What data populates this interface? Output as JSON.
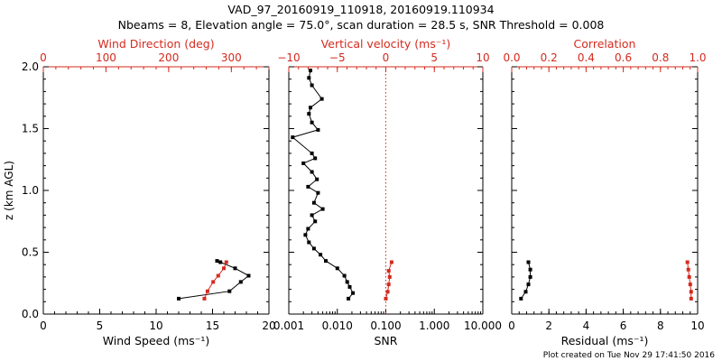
{
  "header": {
    "line1": "VAD_97_20160919_110918, 20160919.110934",
    "line2": "Nbeams = 8, Elevation angle = 75.0°, scan duration = 28.5 s, SNR Threshold = 0.008"
  },
  "footer": "Plot created on Tue Nov 29 17:41:50 2016",
  "colors": {
    "primary": "#000000",
    "secondary": "#d42a1e"
  },
  "chart_data": [
    {
      "type": "line",
      "panel": "left",
      "ylabel": "z (km AGL)",
      "ylim": [
        0,
        2
      ],
      "y_ticks": [
        0.0,
        0.5,
        1.0,
        1.5,
        2.0
      ],
      "y_tick_labels": [
        "0.0",
        "0.5",
        "1.0",
        "1.5",
        "2.0"
      ],
      "x_bottom": {
        "label": "Wind Speed (ms⁻¹)",
        "range": [
          0,
          20
        ],
        "ticks": [
          0,
          5,
          10,
          15,
          20
        ],
        "tick_labels": [
          "0",
          "5",
          "10",
          "15",
          "20"
        ]
      },
      "x_top": {
        "label": "Wind Direction (deg)",
        "range": [
          0,
          360
        ],
        "ticks": [
          0,
          100,
          200,
          300
        ],
        "tick_labels": [
          "0",
          "100",
          "200",
          "300"
        ]
      },
      "series": [
        {
          "axis": "bottom",
          "color": "black",
          "points": [
            [
              12.0,
              0.125
            ],
            [
              16.5,
              0.185
            ],
            [
              17.5,
              0.26
            ],
            [
              18.2,
              0.31
            ],
            [
              17.0,
              0.37
            ],
            [
              15.7,
              0.42
            ],
            [
              15.4,
              0.43
            ]
          ]
        },
        {
          "axis": "top",
          "color": "red",
          "points": [
            [
              257,
              0.125
            ],
            [
              262,
              0.185
            ],
            [
              271,
              0.26
            ],
            [
              279,
              0.31
            ],
            [
              288,
              0.37
            ],
            [
              292,
              0.42
            ]
          ]
        }
      ]
    },
    {
      "type": "line",
      "panel": "middle",
      "ylim": [
        0,
        2
      ],
      "x_bottom": {
        "label": "SNR",
        "scale": "log",
        "range": [
          0.001,
          10
        ],
        "ticks": [
          0.001,
          0.01,
          0.1,
          1,
          10
        ],
        "tick_labels": [
          "0.001",
          "0.010",
          "0.100",
          "1.000",
          "10.000"
        ]
      },
      "x_top": {
        "label": "Vertical velocity (ms⁻¹)",
        "range": [
          -10,
          10
        ],
        "ticks": [
          -10,
          -5,
          0,
          5,
          10
        ],
        "tick_labels": [
          "−10",
          "−5",
          "0",
          "5",
          "10"
        ]
      },
      "reference_line": {
        "axis": "top",
        "value": 0,
        "style": "dotted",
        "color": "red"
      },
      "series": [
        {
          "axis": "bottom",
          "color": "black",
          "points": [
            [
              0.017,
              0.125
            ],
            [
              0.021,
              0.17
            ],
            [
              0.018,
              0.22
            ],
            [
              0.016,
              0.26
            ],
            [
              0.014,
              0.31
            ],
            [
              0.01,
              0.37
            ],
            [
              0.0058,
              0.43
            ],
            [
              0.0045,
              0.48
            ],
            [
              0.0033,
              0.53
            ],
            [
              0.0026,
              0.58
            ],
            [
              0.0022,
              0.64
            ],
            [
              0.0025,
              0.69
            ],
            [
              0.0035,
              0.75
            ],
            [
              0.003,
              0.8
            ],
            [
              0.005,
              0.85
            ],
            [
              0.0033,
              0.9
            ],
            [
              0.004,
              0.98
            ],
            [
              0.0025,
              1.03
            ],
            [
              0.0038,
              1.09
            ],
            [
              0.003,
              1.15
            ],
            [
              0.002,
              1.22
            ],
            [
              0.0035,
              1.26
            ],
            [
              0.003,
              1.3
            ],
            [
              0.0012,
              1.43
            ],
            [
              0.004,
              1.49
            ],
            [
              0.003,
              1.55
            ],
            [
              0.0026,
              1.62
            ],
            [
              0.0028,
              1.67
            ],
            [
              0.0048,
              1.74
            ],
            [
              0.003,
              1.85
            ],
            [
              0.0026,
              1.91
            ],
            [
              0.0028,
              1.97
            ]
          ]
        },
        {
          "axis": "top",
          "color": "red",
          "points": [
            [
              0.0,
              0.125
            ],
            [
              0.2,
              0.18
            ],
            [
              0.3,
              0.24
            ],
            [
              0.4,
              0.3
            ],
            [
              0.3,
              0.35
            ],
            [
              0.6,
              0.42
            ]
          ]
        }
      ]
    },
    {
      "type": "line",
      "panel": "right",
      "ylim": [
        0,
        2
      ],
      "x_bottom": {
        "label": "Residual (ms⁻¹)",
        "range": [
          0,
          10
        ],
        "ticks": [
          0,
          2,
          4,
          6,
          8,
          10
        ],
        "tick_labels": [
          "0",
          "2",
          "4",
          "6",
          "8",
          "10"
        ]
      },
      "x_top": {
        "label": "Correlation",
        "range": [
          0,
          1
        ],
        "ticks": [
          0,
          0.2,
          0.4,
          0.6,
          0.8,
          1.0
        ],
        "tick_labels": [
          "0.0",
          "0.2",
          "0.4",
          "0.6",
          "0.8",
          "1.0"
        ]
      },
      "series": [
        {
          "axis": "bottom",
          "color": "black",
          "points": [
            [
              0.5,
              0.125
            ],
            [
              0.75,
              0.18
            ],
            [
              0.9,
              0.24
            ],
            [
              1.0,
              0.3
            ],
            [
              1.0,
              0.36
            ],
            [
              0.9,
              0.42
            ]
          ]
        },
        {
          "axis": "top",
          "color": "red",
          "points": [
            [
              0.965,
              0.125
            ],
            [
              0.965,
              0.18
            ],
            [
              0.96,
              0.24
            ],
            [
              0.955,
              0.3
            ],
            [
              0.95,
              0.36
            ],
            [
              0.945,
              0.42
            ]
          ]
        }
      ]
    }
  ]
}
